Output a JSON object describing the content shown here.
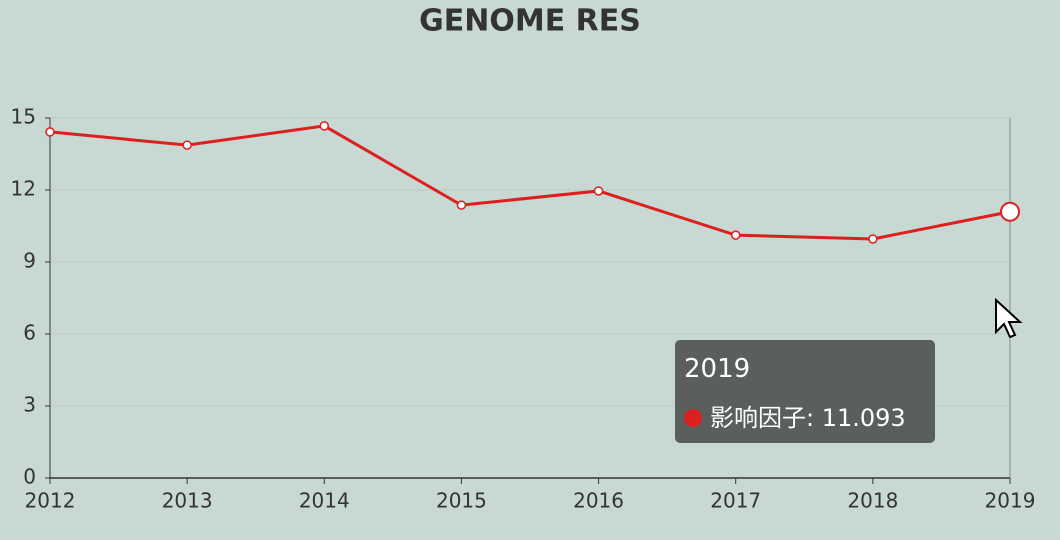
{
  "chart_data": {
    "type": "line",
    "title": "GENOME RES",
    "categories": [
      "2012",
      "2013",
      "2014",
      "2015",
      "2016",
      "2017",
      "2018",
      "2019"
    ],
    "series": [
      {
        "name": "影响因子",
        "color": "#dd1f1f",
        "values": [
          14.42,
          13.87,
          14.67,
          11.37,
          11.96,
          10.12,
          9.96,
          11.093
        ]
      }
    ],
    "ylim": [
      0,
      15
    ],
    "yticks": [
      0,
      3,
      6,
      9,
      12,
      15
    ],
    "grid": true,
    "highlight_index": 7
  }
}
